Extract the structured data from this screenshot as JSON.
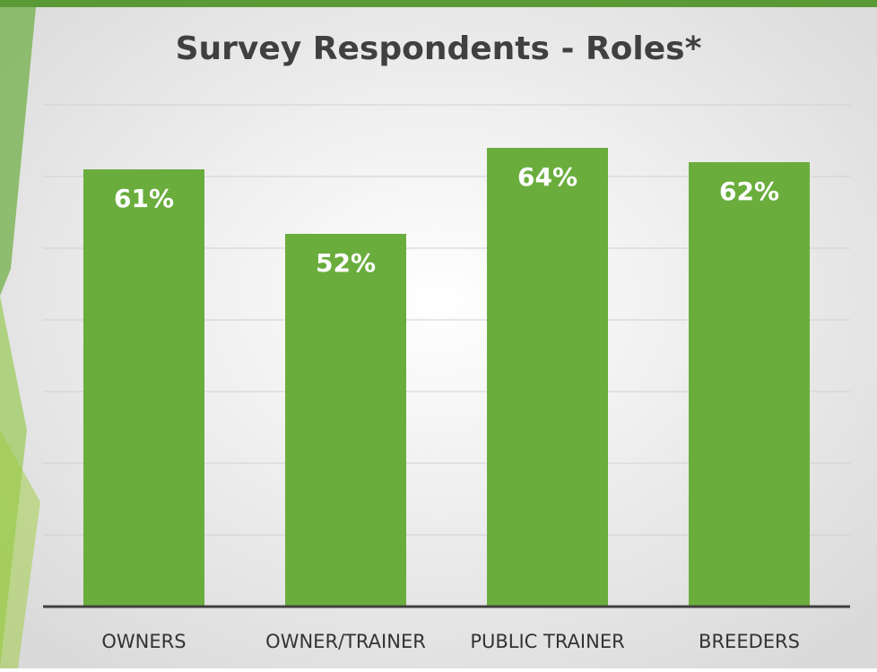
{
  "chart_data": {
    "type": "bar",
    "title": "Survey Respondents - Roles*",
    "categories": [
      "OWNERS",
      "OWNER/TRAINER",
      "PUBLIC TRAINER",
      "BREEDERS"
    ],
    "values": [
      61,
      52,
      64,
      62
    ],
    "value_labels": [
      "61%",
      "52%",
      "64%",
      "62%"
    ],
    "color": "#6aad3d",
    "ylim": [
      0,
      70
    ],
    "yticks": [
      0,
      10,
      20,
      30,
      40,
      50,
      60,
      70
    ],
    "grid": true
  }
}
